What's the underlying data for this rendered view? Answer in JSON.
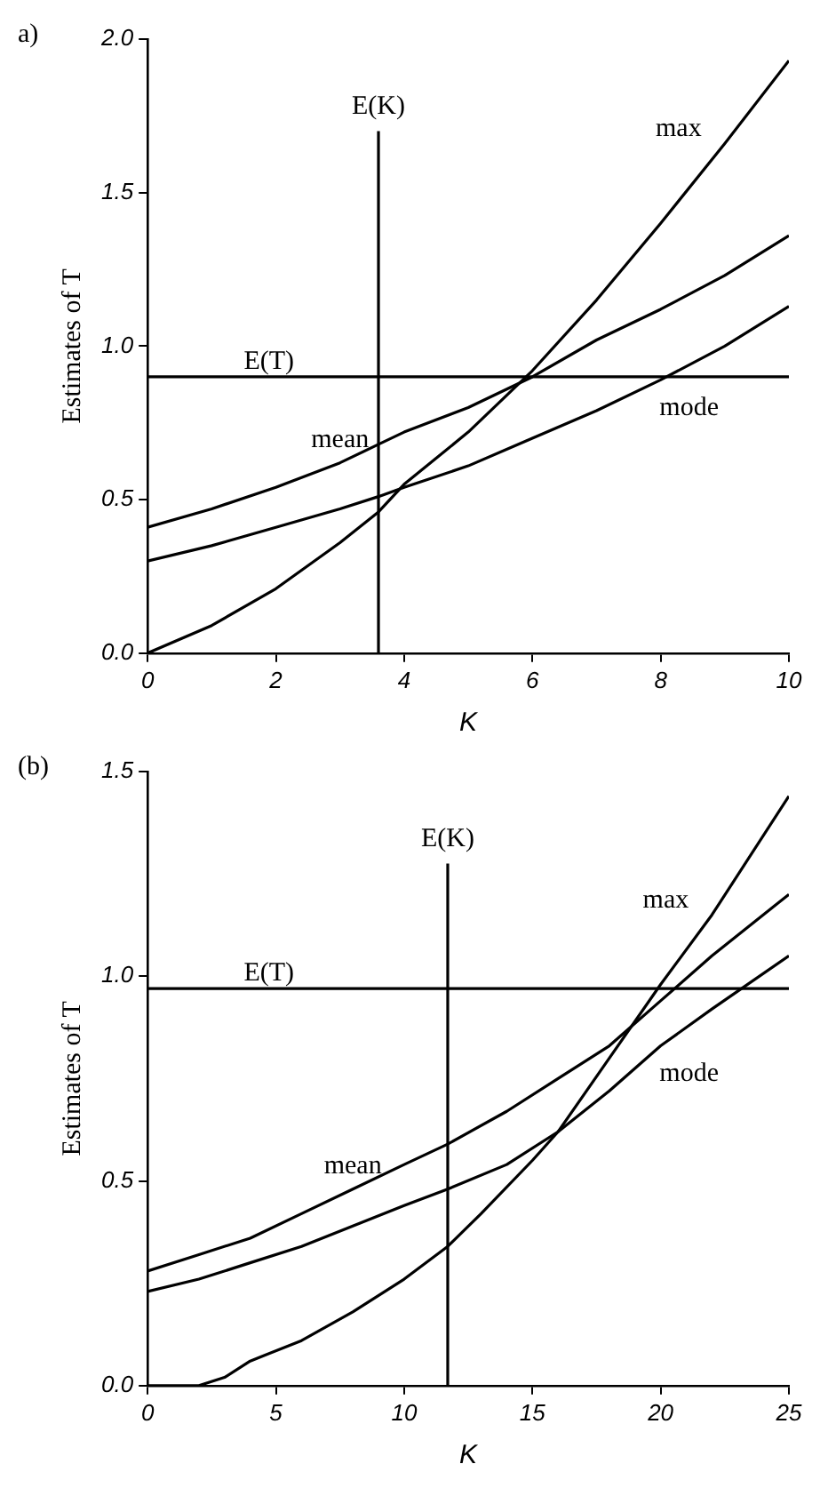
{
  "chart_data": [
    {
      "type": "line",
      "title": "a)",
      "xlabel": "K",
      "ylabel": "Estimates of T",
      "xlim": [
        0,
        10
      ],
      "xticks": [
        0,
        2,
        4,
        6,
        8,
        10
      ],
      "ylim": [
        0,
        2.0
      ],
      "yticks": [
        {
          "value": 0,
          "label": "0.0"
        },
        {
          "value": 0.5,
          "label": "0.5"
        },
        {
          "value": 1,
          "label": "1.0"
        },
        {
          "value": 1.5,
          "label": "1.5"
        },
        {
          "value": 2,
          "label": "2.0"
        }
      ],
      "grid": false,
      "legend": false,
      "marker": "none",
      "line_style": "solid",
      "series": [
        {
          "name": "mean",
          "color": "#000000",
          "x": [
            0,
            1,
            2,
            3,
            3.6,
            4,
            5,
            6,
            7,
            8,
            9,
            10
          ],
          "values": [
            0.41,
            0.47,
            0.54,
            0.62,
            0.68,
            0.72,
            0.8,
            0.9,
            1.02,
            1.12,
            1.23,
            1.36
          ]
        },
        {
          "name": "mode",
          "color": "#000000",
          "x": [
            0,
            1,
            2,
            3,
            3.6,
            4,
            5,
            6,
            7,
            8,
            9,
            10
          ],
          "values": [
            0.3,
            0.35,
            0.41,
            0.47,
            0.51,
            0.54,
            0.61,
            0.7,
            0.79,
            0.89,
            1.0,
            1.13
          ]
        },
        {
          "name": "max",
          "color": "#000000",
          "x": [
            0,
            1,
            2,
            3,
            3.6,
            4,
            5,
            5.8,
            6,
            7,
            8,
            9,
            10
          ],
          "values": [
            0.0,
            0.09,
            0.21,
            0.36,
            0.46,
            0.55,
            0.72,
            0.88,
            0.92,
            1.15,
            1.4,
            1.66,
            1.93
          ]
        }
      ],
      "ref_lines": [
        {
          "axis": "x",
          "value": 3.6,
          "label": "E(K)",
          "color": "#000000"
        },
        {
          "axis": "y",
          "value": 0.9,
          "label": "E(T)",
          "color": "#000000"
        }
      ]
    },
    {
      "type": "line",
      "title": "(b)",
      "xlabel": "K",
      "ylabel": "Estimates of T",
      "xlim": [
        0,
        25
      ],
      "xticks": [
        0,
        5,
        10,
        15,
        20,
        25
      ],
      "ylim": [
        0,
        1.5
      ],
      "yticks": [
        {
          "value": 0,
          "label": "0.0"
        },
        {
          "value": 0.5,
          "label": "0.5"
        },
        {
          "value": 1,
          "label": "1.0"
        },
        {
          "value": 1.5,
          "label": "1.5"
        }
      ],
      "grid": false,
      "legend": false,
      "marker": "none",
      "line_style": "solid",
      "series": [
        {
          "name": "mean",
          "color": "#000000",
          "x": [
            0,
            2,
            4,
            6,
            8,
            10,
            11.7,
            14,
            16,
            18,
            20,
            22,
            25
          ],
          "values": [
            0.28,
            0.32,
            0.36,
            0.42,
            0.48,
            0.54,
            0.59,
            0.67,
            0.75,
            0.83,
            0.94,
            1.05,
            1.2
          ]
        },
        {
          "name": "mode",
          "color": "#000000",
          "x": [
            0,
            2,
            4,
            6,
            8,
            10,
            11.7,
            14,
            16,
            18,
            20,
            22,
            25
          ],
          "values": [
            0.23,
            0.26,
            0.3,
            0.34,
            0.39,
            0.44,
            0.48,
            0.54,
            0.62,
            0.72,
            0.83,
            0.92,
            1.05
          ]
        },
        {
          "name": "max",
          "color": "#000000",
          "x": [
            0,
            2,
            3,
            4,
            6,
            8,
            10,
            11.7,
            13,
            15,
            16,
            18,
            20,
            22,
            25
          ],
          "values": [
            0.0,
            0.0,
            0.02,
            0.06,
            0.11,
            0.18,
            0.26,
            0.34,
            0.42,
            0.55,
            0.62,
            0.8,
            0.98,
            1.15,
            1.44
          ]
        }
      ],
      "ref_lines": [
        {
          "axis": "x",
          "value": 11.7,
          "label": "E(K)",
          "color": "#000000"
        },
        {
          "axis": "y",
          "value": 0.97,
          "label": "E(T)",
          "color": "#000000"
        }
      ]
    }
  ]
}
